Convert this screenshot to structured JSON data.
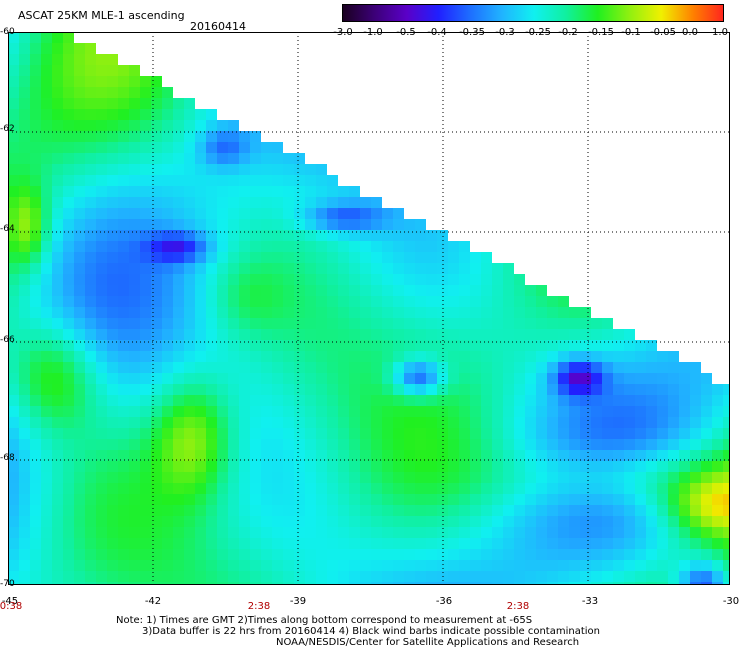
{
  "header": {
    "title": "ASCAT 25KM MLE-1 ascending",
    "date": "20160414"
  },
  "colorbar": {
    "labels": [
      "-3.0",
      "-1.0",
      "-0.5",
      "-0.4",
      "-0.35",
      "-0.3",
      "-0.25",
      "-0.2",
      "-0.15",
      "-0.1",
      "-0.05",
      "0.0",
      "1.0"
    ],
    "colors": [
      "#1a0020",
      "#3c0078",
      "#5a00c8",
      "#2020ff",
      "#1e6eff",
      "#20b4ff",
      "#10f0f0",
      "#10f0a0",
      "#20f020",
      "#90f010",
      "#f0f000",
      "#ff8000",
      "#ff2020"
    ]
  },
  "map": {
    "lat_labels": [
      "-60",
      "-62",
      "-64",
      "-66",
      "-68",
      "-70"
    ],
    "lon_labels": [
      "-45",
      "-42",
      "-39",
      "-36",
      "-33",
      "-30"
    ],
    "pass_times": [
      "0:38",
      "2:38",
      "2:38"
    ],
    "background": "#ffffff",
    "grid_color": "#000000"
  },
  "notes": {
    "line1": "Note: 1) Times are GMT 2)Times along bottom correspond to measurement at -65S",
    "line2": "3)Data buffer is 22 hrs from 20160414 4) Black wind barbs indicate possible contamination",
    "line3": "NOAA/NESDIS/Center for Satellite Applications and Research"
  }
}
